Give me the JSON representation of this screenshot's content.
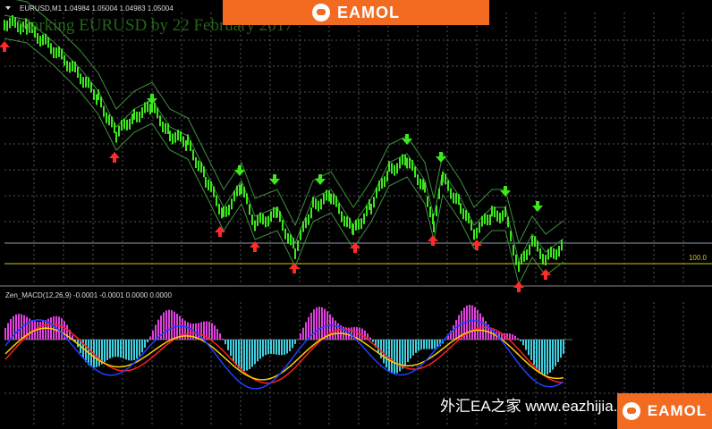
{
  "header": {
    "logo": "EAMOL"
  },
  "main_chart": {
    "symbol_info": "EURUSD,M1  1.04984 1.05004 1.04983 1.05004",
    "overlay_text": "Marking EURUSD by 22 February 2017",
    "level_label": "100.0"
  },
  "indicator": {
    "label": "Zen_MACD(12,26,9) -0.0001 -0.0001 0.0000 0.0000"
  },
  "footer": {
    "watermark": "外汇EA之家 www.eazhijia.com",
    "logo": "EAMOL"
  }
}
